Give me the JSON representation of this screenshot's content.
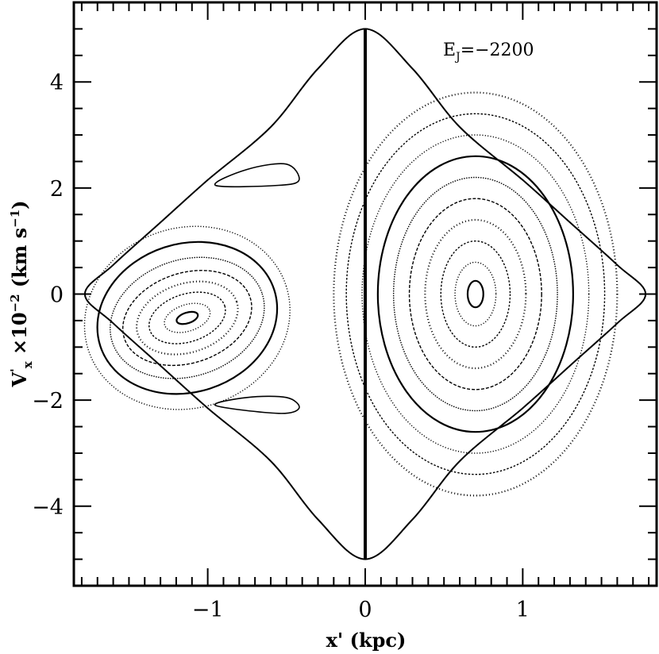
{
  "chart_data": {
    "type": "scatter",
    "plot_kind": "surface of section",
    "annotation": {
      "main": "E",
      "sub": "J",
      "rest": "=−2200"
    },
    "xlabel": {
      "main": "x' (kpc)"
    },
    "ylabel": {
      "main": "V",
      "sup": "'",
      "sub": "x",
      "rest": " ×10",
      "exp": "−2",
      "unit": " (km s",
      "unit_exp": "−1",
      "unit_close": ")"
    },
    "xlim": [
      -1.85,
      1.85
    ],
    "ylim": [
      -5.5,
      5.5
    ],
    "x_ticks": [
      {
        "value": -1,
        "label": "−1"
      },
      {
        "value": 0,
        "label": "0"
      },
      {
        "value": 1,
        "label": "1"
      }
    ],
    "y_ticks": [
      {
        "value": -4,
        "label": "−4"
      },
      {
        "value": -2,
        "label": "−2"
      },
      {
        "value": 0,
        "label": "0"
      },
      {
        "value": 2,
        "label": "2"
      },
      {
        "value": 4,
        "label": "4"
      }
    ],
    "x_minor_step": 0.1,
    "y_minor_step": 0.5,
    "grid": false,
    "zero_velocity_curve": {
      "points": [
        [
          -1.78,
          0
        ],
        [
          -1.6,
          0.55
        ],
        [
          -1.3,
          1.35
        ],
        [
          -1.0,
          2.15
        ],
        [
          -0.6,
          3.15
        ],
        [
          -0.3,
          4.25
        ],
        [
          0,
          5.0
        ],
        [
          0.3,
          4.25
        ],
        [
          0.6,
          3.15
        ],
        [
          1.0,
          2.15
        ],
        [
          1.3,
          1.35
        ],
        [
          1.6,
          0.55
        ],
        [
          1.78,
          0
        ],
        [
          1.6,
          -0.55
        ],
        [
          1.3,
          -1.35
        ],
        [
          1.0,
          -2.15
        ],
        [
          0.6,
          -3.15
        ],
        [
          0.3,
          -4.25
        ],
        [
          0,
          -5.0
        ],
        [
          -0.3,
          -4.25
        ],
        [
          -0.6,
          -3.15
        ],
        [
          -1.0,
          -2.15
        ],
        [
          -1.3,
          -1.35
        ],
        [
          -1.6,
          -0.55
        ]
      ]
    },
    "separatrix": {
      "x": 0,
      "ymin": -5.0,
      "ymax": 5.0
    },
    "islands": [
      {
        "name": "left family",
        "center": [
          -1.13,
          -0.45
        ],
        "tilt_deg": -18,
        "radii": [
          [
            0.07,
            0.1
          ],
          [
            0.15,
            0.25
          ],
          [
            0.25,
            0.45
          ],
          [
            0.33,
            0.65
          ],
          [
            0.42,
            0.85
          ],
          [
            0.5,
            1.1
          ],
          [
            0.58,
            1.4
          ],
          [
            0.66,
            1.7
          ]
        ]
      },
      {
        "name": "right family",
        "center": [
          0.7,
          0.0
        ],
        "tilt_deg": 0,
        "radii": [
          [
            0.05,
            0.25
          ],
          [
            0.13,
            0.6
          ],
          [
            0.22,
            1.0
          ],
          [
            0.32,
            1.4
          ],
          [
            0.42,
            1.8
          ],
          [
            0.52,
            2.2
          ],
          [
            0.62,
            2.6
          ],
          [
            0.72,
            3.0
          ],
          [
            0.82,
            3.4
          ],
          [
            0.9,
            3.8
          ]
        ]
      }
    ],
    "crescents": [
      {
        "name": "upper crescent",
        "points": [
          [
            -0.55,
            2.05
          ],
          [
            -0.42,
            2.15
          ],
          [
            -0.5,
            2.45
          ],
          [
            -0.75,
            2.35
          ],
          [
            -0.95,
            2.05
          ]
        ]
      },
      {
        "name": "lower crescent",
        "points": [
          [
            -0.55,
            -2.25
          ],
          [
            -0.42,
            -2.15
          ],
          [
            -0.5,
            -1.95
          ],
          [
            -0.75,
            -1.95
          ],
          [
            -0.95,
            -2.1
          ]
        ]
      }
    ]
  }
}
